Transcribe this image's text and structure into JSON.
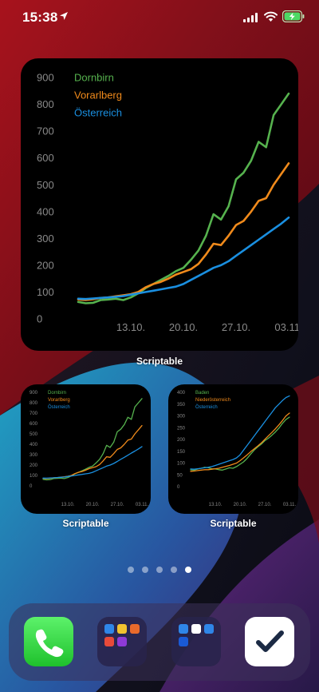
{
  "status_bar": {
    "time": "15:38",
    "location_icon": "location-arrow-icon",
    "signal_icon": "cellular-signal-icon",
    "wifi_icon": "wifi-icon",
    "battery_icon": "battery-charging-icon"
  },
  "colors": {
    "green": "#56b24e",
    "orange": "#f08a1b",
    "blue": "#1a8fe0",
    "tick_text": "#8a8a8a"
  },
  "widgets": [
    {
      "label": "Scriptable",
      "size": "large"
    },
    {
      "label": "Scriptable",
      "size": "small"
    },
    {
      "label": "Scriptable",
      "size": "small"
    }
  ],
  "chart_data": [
    {
      "type": "line",
      "widget": "large",
      "ylim": [
        0,
        900
      ],
      "yticks": [
        0,
        100,
        200,
        300,
        400,
        500,
        600,
        700,
        800,
        900
      ],
      "xtick_labels": [
        "13.10.",
        "20.10.",
        "27.10.",
        "03.11."
      ],
      "xtick_index": [
        7,
        14,
        21,
        28
      ],
      "grid": false,
      "legend_position": "top-left",
      "series": [
        {
          "name": "Dornbirn",
          "color": "#56b24e",
          "values": [
            63,
            58,
            60,
            70,
            72,
            75,
            70,
            80,
            95,
            115,
            130,
            145,
            160,
            178,
            190,
            220,
            255,
            310,
            390,
            370,
            420,
            520,
            545,
            590,
            660,
            640,
            760,
            800,
            840
          ]
        },
        {
          "name": "Vorarlberg",
          "color": "#f08a1b",
          "values": [
            72,
            70,
            73,
            78,
            80,
            84,
            88,
            92,
            100,
            118,
            130,
            138,
            150,
            165,
            175,
            185,
            205,
            240,
            280,
            275,
            310,
            350,
            365,
            400,
            440,
            450,
            500,
            540,
            580
          ]
        },
        {
          "name": "Österreich",
          "color": "#1a8fe0",
          "values": [
            75,
            74,
            76,
            78,
            80,
            82,
            85,
            90,
            95,
            100,
            105,
            110,
            115,
            120,
            130,
            145,
            160,
            175,
            190,
            200,
            215,
            235,
            255,
            275,
            295,
            315,
            335,
            355,
            378
          ]
        }
      ]
    },
    {
      "type": "line",
      "widget": "small-1",
      "ylim": [
        0,
        900
      ],
      "yticks": [
        0,
        100,
        200,
        300,
        400,
        500,
        600,
        700,
        800,
        900
      ],
      "xtick_labels": [
        "13.10.",
        "20.10.",
        "27.10.",
        "03.11."
      ],
      "xtick_index": [
        7,
        14,
        21,
        28
      ],
      "grid": false,
      "legend_position": "top-left",
      "series": [
        {
          "name": "Dornbirn",
          "color": "#56b24e",
          "values": [
            63,
            58,
            60,
            70,
            72,
            75,
            70,
            80,
            95,
            115,
            130,
            145,
            160,
            178,
            190,
            220,
            255,
            310,
            390,
            370,
            420,
            520,
            545,
            590,
            660,
            640,
            760,
            800,
            840
          ]
        },
        {
          "name": "Vorarlberg",
          "color": "#f08a1b",
          "values": [
            72,
            70,
            73,
            78,
            80,
            84,
            88,
            92,
            100,
            118,
            130,
            138,
            150,
            165,
            175,
            185,
            205,
            240,
            280,
            275,
            310,
            350,
            365,
            400,
            440,
            450,
            500,
            540,
            580
          ]
        },
        {
          "name": "Österreich",
          "color": "#1a8fe0",
          "values": [
            75,
            74,
            76,
            78,
            80,
            82,
            85,
            90,
            95,
            100,
            105,
            110,
            115,
            120,
            130,
            145,
            160,
            175,
            190,
            200,
            215,
            235,
            255,
            275,
            295,
            315,
            335,
            355,
            378
          ]
        }
      ]
    },
    {
      "type": "line",
      "widget": "small-2",
      "ylim": [
        0,
        400
      ],
      "yticks": [
        0,
        50,
        100,
        150,
        200,
        250,
        300,
        350,
        400
      ],
      "xtick_labels": [
        "13.10.",
        "20.10.",
        "27.10.",
        "03.11."
      ],
      "xtick_index": [
        7,
        14,
        21,
        28
      ],
      "grid": false,
      "legend_position": "top-left",
      "series": [
        {
          "name": "Baden",
          "color": "#56b24e",
          "values": [
            72,
            70,
            75,
            78,
            82,
            80,
            76,
            75,
            72,
            70,
            75,
            80,
            78,
            85,
            95,
            105,
            120,
            138,
            155,
            168,
            180,
            195,
            205,
            218,
            232,
            248,
            268,
            285,
            295
          ]
        },
        {
          "name": "Niederösterreich",
          "color": "#f08a1b",
          "values": [
            65,
            66,
            68,
            70,
            72,
            72,
            74,
            76,
            78,
            82,
            86,
            90,
            95,
            100,
            110,
            122,
            135,
            148,
            160,
            172,
            185,
            200,
            215,
            230,
            245,
            262,
            280,
            300,
            312
          ]
        },
        {
          "name": "Österreich",
          "color": "#1a8fe0",
          "values": [
            75,
            74,
            76,
            78,
            80,
            82,
            85,
            90,
            95,
            100,
            105,
            110,
            115,
            122,
            135,
            155,
            175,
            195,
            215,
            235,
            255,
            275,
            295,
            315,
            335,
            350,
            365,
            378,
            385
          ]
        }
      ]
    }
  ],
  "page_dots": {
    "count": 5,
    "active_index": 4
  },
  "dock": {
    "apps": [
      {
        "name": "phone-app",
        "icon": "phone-handset-icon"
      },
      {
        "name": "folder-1",
        "icon": "folder-icon"
      },
      {
        "name": "folder-2",
        "icon": "folder-icon"
      },
      {
        "name": "things-app",
        "icon": "checkmark-icon"
      }
    ]
  }
}
